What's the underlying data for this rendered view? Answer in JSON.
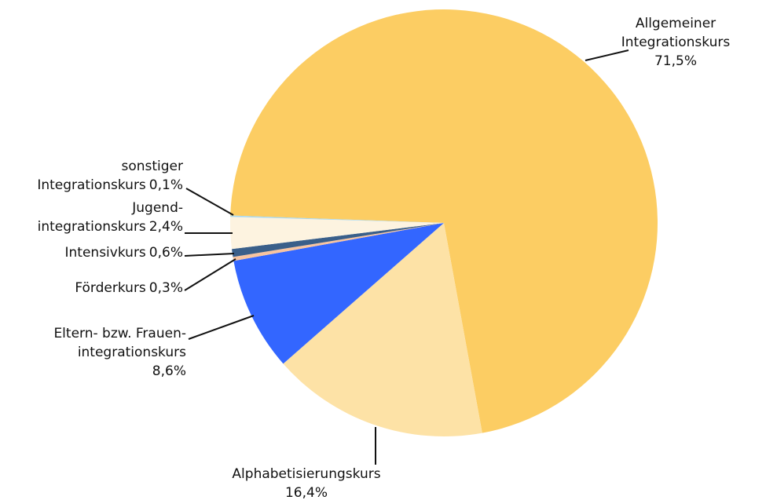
{
  "chart_data": {
    "type": "pie",
    "categories": [
      "Allgemeiner\nIntegrationskurs",
      "Alphabetisierungskurs",
      "Eltern- bzw. Frauen-\nintegrationskurs",
      "Förderkurs",
      "Intensivkurs",
      "Jugend-\nintegrationskurs",
      "sonstiger\nIntegrationskurs"
    ],
    "values": [
      71.5,
      16.4,
      8.6,
      0.3,
      0.6,
      2.4,
      0.1
    ],
    "value_labels": [
      "71,5%",
      "16,4%",
      "8,6%",
      "0,3%",
      "0,6%",
      "2,4%",
      "0,1%"
    ],
    "colors": [
      "#fccd63",
      "#fde2a6",
      "#3366ff",
      "#f8c4a0",
      "#3a5f8a",
      "#fdf3e0",
      "#a8d8f0"
    ]
  }
}
